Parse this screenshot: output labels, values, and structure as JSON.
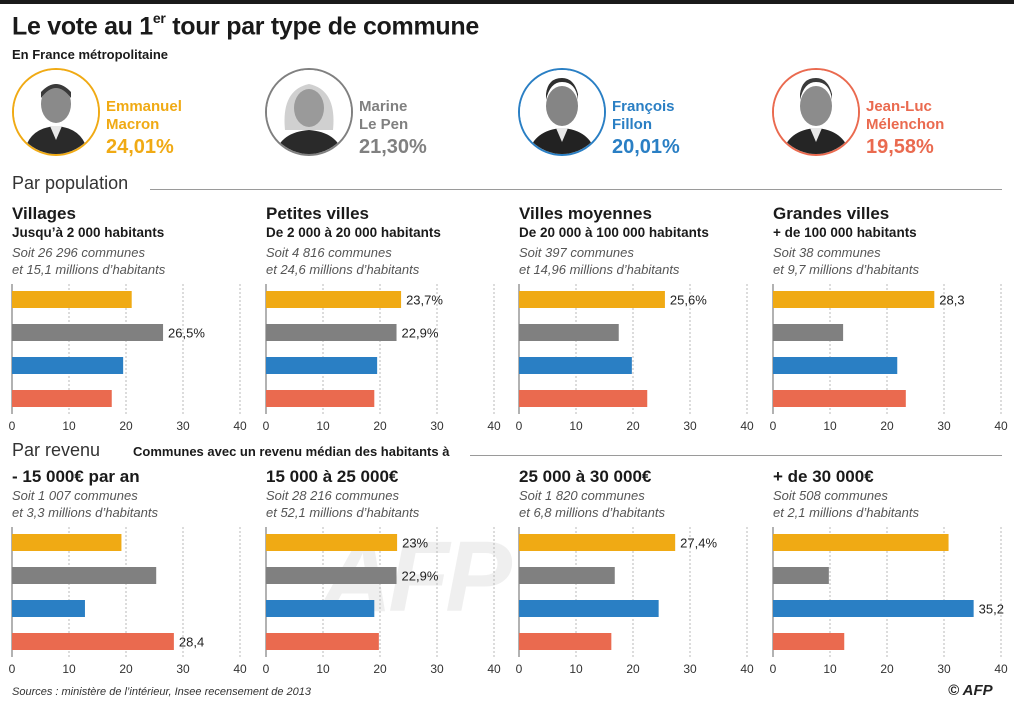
{
  "header": {
    "title": "Le vote au 1",
    "title_sup": "er",
    "title_rest": " tour par type de commune",
    "subtitle": "En France métropolitaine"
  },
  "candidates": [
    {
      "first": "Emmanuel",
      "last": "Macron",
      "pct": "24,01%",
      "color": "#f0aa14"
    },
    {
      "first": "Marine",
      "last": "Le Pen",
      "pct": "21,30%",
      "color": "#808080"
    },
    {
      "first": "François",
      "last": "Fillon",
      "pct": "20,01%",
      "color": "#2a7fc4"
    },
    {
      "first": "Jean-Luc",
      "last": "Mélenchon",
      "pct": "19,58%",
      "color": "#ea6a4f"
    }
  ],
  "sections": {
    "population": "Par population",
    "revenu": "Par revenu",
    "revenu_note": "Communes avec un revenu médian des habitants à"
  },
  "panels": [
    {
      "heading": "Villages",
      "sub": "Jusqu’à 2 000 habitants",
      "note1": "Soit 26 296 communes",
      "note2": "et 15,1 millions d’habitants"
    },
    {
      "heading": "Petites villes",
      "sub": "De 2 000 à 20 000 habitants",
      "note1": "Soit 4 816 communes",
      "note2": "et 24,6 millions d’habitants"
    },
    {
      "heading": "Villes moyennes",
      "sub": "De 20 000 à 100 000 habitants",
      "note1": "Soit 397 communes",
      "note2": "et 14,96 millions d’habitants"
    },
    {
      "heading": "Grandes villes",
      "sub": "+ de 100 000 habitants",
      "note1": "Soit 38 communes",
      "note2": "et 9,7 millions d’habitants"
    },
    {
      "heading": "- 15 000€ par an",
      "note1": "Soit  1 007 communes",
      "note2": "et 3,3 millions d’habitants"
    },
    {
      "heading": "15 000 à 25 000€",
      "note1": "Soit 28 216 communes",
      "note2": "et 52,1 millions d’habitants"
    },
    {
      "heading": "25 000 à 30 000€",
      "note1": "Soit 1 820 communes",
      "note2": "et 6,8 millions d’habitants"
    },
    {
      "heading": "+ de 30 000€",
      "note1": "Soit 508 communes",
      "note2": "et 2,1 millions d’habitants"
    }
  ],
  "chart_data": [
    {
      "type": "bar",
      "orientation": "horizontal",
      "title": "Villages",
      "categories": [
        "Macron",
        "Le Pen",
        "Fillon",
        "Mélenchon"
      ],
      "values": [
        21,
        26.5,
        19.5,
        17.5
      ],
      "labels": [
        "",
        "26,5%",
        "",
        ""
      ],
      "xlim": [
        0,
        40
      ],
      "ticks": [
        "0",
        "10",
        "20",
        "30",
        "40"
      ]
    },
    {
      "type": "bar",
      "orientation": "horizontal",
      "title": "Petites villes",
      "categories": [
        "Macron",
        "Le Pen",
        "Fillon",
        "Mélenchon"
      ],
      "values": [
        23.7,
        22.9,
        19.5,
        19
      ],
      "labels": [
        "23,7%",
        "22,9%",
        "",
        ""
      ],
      "xlim": [
        0,
        40
      ],
      "ticks": [
        "0",
        "10",
        "20",
        "30",
        "40"
      ]
    },
    {
      "type": "bar",
      "orientation": "horizontal",
      "title": "Villes moyennes",
      "categories": [
        "Macron",
        "Le Pen",
        "Fillon",
        "Mélenchon"
      ],
      "values": [
        25.6,
        17.5,
        19.8,
        22.5
      ],
      "labels": [
        "25,6%",
        "",
        "",
        ""
      ],
      "xlim": [
        0,
        40
      ],
      "ticks": [
        "0",
        "10",
        "20",
        "30",
        "40"
      ]
    },
    {
      "type": "bar",
      "orientation": "horizontal",
      "title": "Grandes villes",
      "categories": [
        "Macron",
        "Le Pen",
        "Fillon",
        "Mélenchon"
      ],
      "values": [
        28.3,
        12.3,
        21.8,
        23.3
      ],
      "labels": [
        "28,3",
        "",
        "",
        ""
      ],
      "xlim": [
        0,
        40
      ],
      "ticks": [
        "0",
        "10",
        "20",
        "30",
        "40"
      ]
    },
    {
      "type": "bar",
      "orientation": "horizontal",
      "title": "- 15 000€ par an",
      "categories": [
        "Macron",
        "Le Pen",
        "Fillon",
        "Mélenchon"
      ],
      "values": [
        19.2,
        25.3,
        12.8,
        28.4
      ],
      "labels": [
        "",
        "",
        "",
        "28,4"
      ],
      "xlim": [
        0,
        40
      ],
      "ticks": [
        "0",
        "10",
        "20",
        "30",
        "40"
      ]
    },
    {
      "type": "bar",
      "orientation": "horizontal",
      "title": "15 000 à 25 000€",
      "categories": [
        "Macron",
        "Le Pen",
        "Fillon",
        "Mélenchon"
      ],
      "values": [
        23,
        22.9,
        19,
        19.8
      ],
      "labels": [
        "23%",
        "22,9%",
        "",
        ""
      ],
      "xlim": [
        0,
        40
      ],
      "ticks": [
        "0",
        "10",
        "20",
        "30",
        "40"
      ]
    },
    {
      "type": "bar",
      "orientation": "horizontal",
      "title": "25 000 à 30 000€",
      "categories": [
        "Macron",
        "Le Pen",
        "Fillon",
        "Mélenchon"
      ],
      "values": [
        27.4,
        16.8,
        24.5,
        16.2
      ],
      "labels": [
        "27,4%",
        "",
        "",
        ""
      ],
      "xlim": [
        0,
        40
      ],
      "ticks": [
        "0",
        "10",
        "20",
        "30",
        "40"
      ]
    },
    {
      "type": "bar",
      "orientation": "horizontal",
      "title": "+ de 30 000€",
      "categories": [
        "Macron",
        "Le Pen",
        "Fillon",
        "Mélenchon"
      ],
      "values": [
        30.8,
        9.8,
        35.2,
        12.5
      ],
      "labels": [
        "",
        "",
        "35,2",
        ""
      ],
      "xlim": [
        0,
        40
      ],
      "ticks": [
        "0",
        "10",
        "20",
        "30",
        "40"
      ]
    }
  ],
  "footer": {
    "source": "Sources : ministère de l’intérieur, Insee recensement de 2013",
    "logo": "© AFP",
    "watermark": "AFP"
  }
}
